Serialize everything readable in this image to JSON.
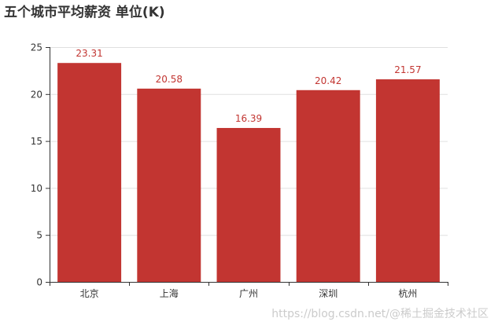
{
  "chart_data": {
    "type": "bar",
    "title": "五个城市平均薪资 单位(K)",
    "categories": [
      "北京",
      "上海",
      "广州",
      "深圳",
      "杭州"
    ],
    "values": [
      23.31,
      20.58,
      16.39,
      20.42,
      21.57
    ],
    "value_labels": [
      "23.31",
      "20.58",
      "16.39",
      "20.42",
      "21.57"
    ],
    "ylim": [
      0,
      25
    ],
    "yticks": [
      "0",
      "5",
      "10",
      "15",
      "20",
      "25"
    ],
    "xlabel": "",
    "ylabel": "",
    "grid": true,
    "bar_color": "#c23531",
    "label_color": "#c23531"
  },
  "watermark": "https://blog.csdn.net/@稀土掘金技术社区"
}
